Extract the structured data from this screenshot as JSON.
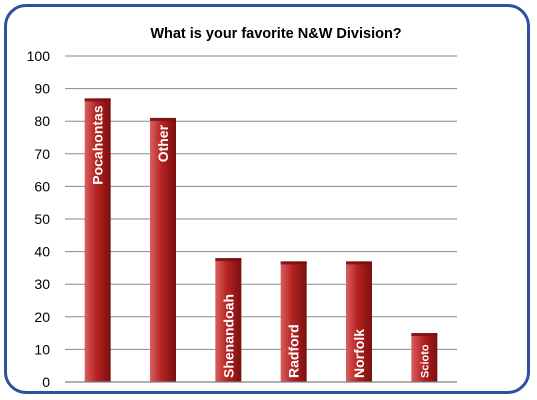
{
  "chart_data": {
    "type": "bar",
    "title": "What is your favorite N&W Division?",
    "xlabel": "",
    "ylabel": "",
    "categories": [
      "Pocahontas",
      "Other",
      "Shenandoah",
      "Radford",
      "Norfolk",
      "Scioto"
    ],
    "values": [
      87,
      81,
      38,
      37,
      37,
      15
    ],
    "ylim": [
      0,
      100
    ],
    "yticks": [
      0,
      10,
      20,
      30,
      40,
      50,
      60,
      70,
      80,
      90,
      100
    ],
    "grid": true,
    "legend": "none",
    "colors": {
      "bar_light": "#d96060",
      "bar_mid": "#b52222",
      "bar_dark": "#7a0f0f",
      "gridline": "#8a8a8a",
      "axis": "#7f7f7f",
      "frame_border": "#2f4f9f"
    }
  }
}
